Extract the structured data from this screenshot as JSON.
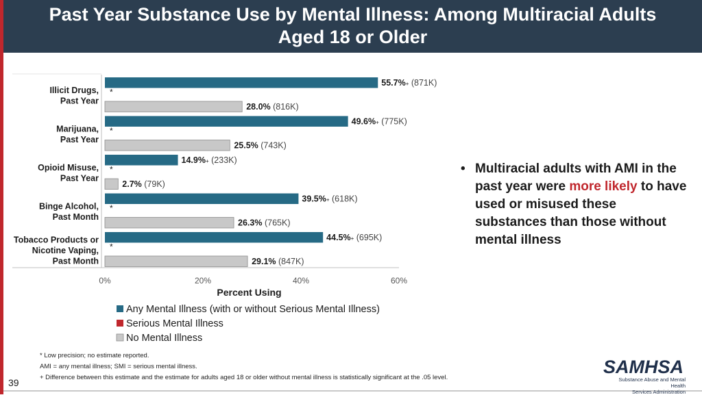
{
  "title": "Past Year Substance Use by Mental Illness: Among Multiracial Adults Aged 18 or Older",
  "chart_data": {
    "type": "bar",
    "orientation": "horizontal",
    "xlabel": "Percent Using",
    "xlim": [
      0,
      60
    ],
    "xticks": [
      "0%",
      "20%",
      "40%",
      "60%"
    ],
    "categories": [
      [
        "Illicit Drugs,",
        "Past Year"
      ],
      [
        "Marijuana,",
        "Past Year"
      ],
      [
        "Opioid Misuse,",
        "Past Year"
      ],
      [
        "Binge Alcohol,",
        "Past Month"
      ],
      [
        "Tobacco Products or",
        "Nicotine Vaping,",
        "Past Month"
      ]
    ],
    "series": [
      {
        "name": "Any Mental Illness (with or without Serious Mental Illness)",
        "color": "#266a85",
        "values": [
          55.7,
          49.6,
          14.9,
          39.5,
          44.5
        ],
        "value_labels": [
          "55.7%",
          "49.6%",
          "14.9%",
          "39.5%",
          "44.5%"
        ],
        "marks": [
          "+",
          "+",
          "+",
          "+",
          "+"
        ],
        "counts": [
          "(871K)",
          "(775K)",
          "(233K)",
          "(618K)",
          "(695K)"
        ]
      },
      {
        "name": "Serious Mental Illness",
        "color": "#c0272d",
        "values": [
          null,
          null,
          null,
          null,
          null
        ],
        "value_labels": [
          "*",
          "*",
          "*",
          "*",
          "*"
        ]
      },
      {
        "name": "No Mental Illness",
        "color": "#c8c8c8",
        "values": [
          28.0,
          25.5,
          2.7,
          26.3,
          29.1
        ],
        "value_labels": [
          "28.0%",
          "25.5%",
          "2.7%",
          "26.3%",
          "29.1%"
        ],
        "counts": [
          "(816K)",
          "(743K)",
          "(79K)",
          "(765K)",
          "(847K)"
        ]
      }
    ],
    "legend_position": "bottom"
  },
  "bullet": {
    "icon": "•",
    "text_before": "Multiracial adults with AMI in the past year were ",
    "highlight": "more likely",
    "text_after": " to have used or misused these substances than those without mental illness",
    "highlight_color": "#c0272d"
  },
  "footnotes": [
    "* Low precision; no estimate reported.",
    "AMI = any mental illness; SMI = serious mental illness.",
    "+ Difference between this estimate and the estimate for adults aged 18 or older without mental illness is statistically significant at the .05 level."
  ],
  "page_number": "39",
  "logo": {
    "name": "SAMHSA",
    "subtitle": [
      "Substance Abuse and Mental Health",
      "Services Administration"
    ]
  }
}
